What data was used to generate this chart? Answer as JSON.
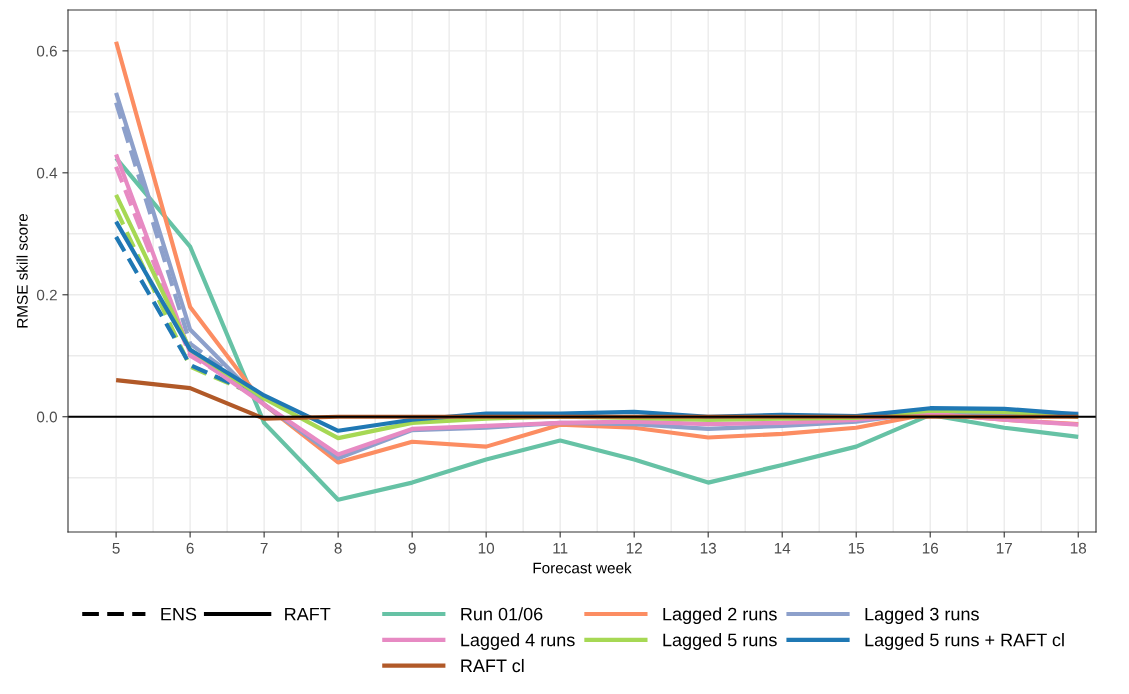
{
  "chart_data": {
    "type": "line",
    "xlabel": "Forecast week",
    "ylabel": "RMSE skill score",
    "x": [
      5,
      6,
      7,
      8,
      9,
      10,
      11,
      12,
      13,
      14,
      15,
      16,
      17,
      18
    ],
    "xlim": [
      4.35,
      18.24
    ],
    "xticks": [
      5,
      6,
      7,
      8,
      9,
      10,
      11,
      12,
      13,
      14,
      15,
      16,
      17,
      18
    ],
    "ylim": [
      -0.189,
      0.667
    ],
    "yticks": [
      {
        "value": 0,
        "label": "0.0"
      },
      {
        "value": 0.2,
        "label": "0.2"
      },
      {
        "value": 0.4,
        "label": "0.4"
      },
      {
        "value": 0.6,
        "label": "0.6"
      }
    ],
    "grid": true,
    "legend": "bottom",
    "ref_lines": [
      {
        "axis": "y",
        "value": 0,
        "color": "#000000",
        "line_style": "solid"
      }
    ],
    "annotations": [
      "ENS",
      "RAFT"
    ],
    "series": [
      {
        "color": "#8da0cb",
        "line_style": "dashed",
        "x": [
          5,
          6,
          7
        ],
        "values": [
          0.515,
          0.12,
          0.03
        ]
      },
      {
        "color": "#e78ac3",
        "line_style": "dashed",
        "x": [
          5,
          6,
          7
        ],
        "values": [
          0.41,
          0.1,
          0.03
        ]
      },
      {
        "color": "#a6d854",
        "line_style": "dashed",
        "x": [
          5,
          6,
          7
        ],
        "values": [
          0.34,
          0.082,
          0.03
        ]
      },
      {
        "color": "#1f78b4",
        "line_style": "dashed",
        "x": [
          5,
          6,
          7
        ],
        "values": [
          0.295,
          0.085,
          0.03
        ]
      },
      {
        "name": "Run 01/06",
        "color": "#66c2a5",
        "line_style": "solid",
        "values": [
          0.424,
          0.279,
          -0.01,
          -0.136,
          -0.108,
          -0.07,
          -0.039,
          -0.07,
          -0.108,
          -0.079,
          -0.049,
          0.003,
          -0.018,
          -0.033
        ]
      },
      {
        "name": "Lagged 2 runs",
        "color": "#fc8d62",
        "line_style": "solid",
        "values": [
          0.615,
          0.18,
          0.02,
          -0.075,
          -0.041,
          -0.049,
          -0.013,
          -0.018,
          -0.034,
          -0.028,
          -0.018,
          0.005,
          -0.005,
          -0.012
        ]
      },
      {
        "name": "Lagged 3 runs",
        "color": "#8da0cb",
        "line_style": "solid",
        "values": [
          0.531,
          0.143,
          0.02,
          -0.068,
          -0.022,
          -0.018,
          -0.01,
          -0.012,
          -0.02,
          -0.015,
          -0.008,
          0.008,
          0.005,
          0.005
        ]
      },
      {
        "name": "Lagged 4 runs",
        "color": "#e78ac3",
        "line_style": "solid",
        "values": [
          0.43,
          0.105,
          0.02,
          -0.062,
          -0.02,
          -0.015,
          -0.01,
          -0.008,
          -0.012,
          -0.01,
          -0.005,
          0.005,
          -0.005,
          -0.013
        ]
      },
      {
        "name": "Lagged 5 runs",
        "color": "#a6d854",
        "line_style": "solid",
        "values": [
          0.364,
          0.11,
          0.03,
          -0.035,
          -0.01,
          -0.003,
          0.0,
          -0.002,
          -0.005,
          -0.003,
          -0.002,
          0.01,
          0.008,
          0.0
        ]
      },
      {
        "name": "Lagged 5 runs + RAFT cl",
        "color": "#1f78b4",
        "line_style": "solid",
        "values": [
          0.32,
          0.11,
          0.035,
          -0.023,
          -0.005,
          0.005,
          0.005,
          0.008,
          0.0,
          0.003,
          0.001,
          0.014,
          0.013,
          0.004
        ]
      },
      {
        "name": "RAFT cl",
        "color": "#b15928",
        "line_style": "solid",
        "values": [
          0.06,
          0.047,
          -0.003,
          0.0,
          0.0,
          0.0,
          0.0,
          0.0,
          0.0,
          0.0,
          0.0,
          0.0,
          0.0,
          0.0
        ]
      }
    ]
  }
}
